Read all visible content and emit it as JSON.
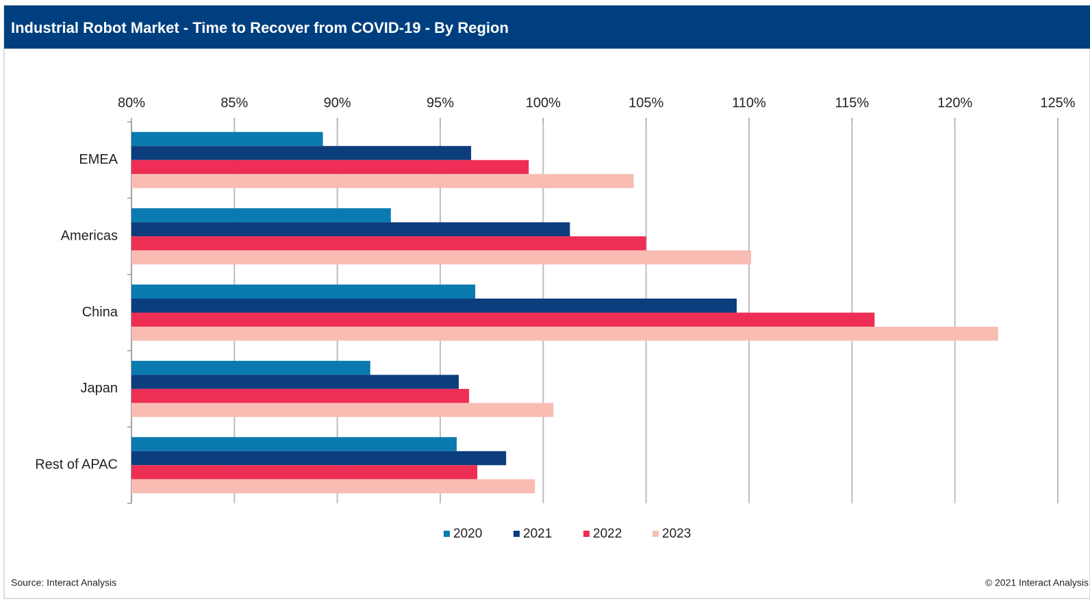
{
  "chart_data": {
    "type": "barh",
    "title": "Industrial Robot Market - Time to Recover from COVID-19 - By Region",
    "categories": [
      "EMEA",
      "Americas",
      "China",
      "Japan",
      "Rest of APAC"
    ],
    "series": [
      {
        "name": "2020",
        "color": "#0a7ab0",
        "values": [
          89.3,
          92.6,
          96.7,
          91.6,
          95.8
        ]
      },
      {
        "name": "2021",
        "color": "#0c3d7d",
        "values": [
          96.5,
          101.3,
          109.4,
          95.9,
          98.2
        ]
      },
      {
        "name": "2022",
        "color": "#ee2e55",
        "values": [
          99.3,
          105.0,
          116.1,
          96.4,
          96.8
        ]
      },
      {
        "name": "2023",
        "color": "#f8bcb3",
        "values": [
          104.4,
          110.1,
          122.1,
          100.5,
          99.6
        ]
      }
    ],
    "xlim": [
      80,
      125
    ],
    "xticks": [
      {
        "value": 80,
        "label": "80%"
      },
      {
        "value": 85,
        "label": "85%"
      },
      {
        "value": 90,
        "label": "90%"
      },
      {
        "value": 95,
        "label": "95%"
      },
      {
        "value": 100,
        "label": "100%"
      },
      {
        "value": 105,
        "label": "105%"
      },
      {
        "value": 110,
        "label": "110%"
      },
      {
        "value": 115,
        "label": "115%"
      },
      {
        "value": 120,
        "label": "120%"
      },
      {
        "value": 125,
        "label": "125%"
      }
    ],
    "grid": true,
    "legend": "bottom",
    "source": "Source: Interact Analysis",
    "copyright": "© 2021 Interact Analysis"
  }
}
